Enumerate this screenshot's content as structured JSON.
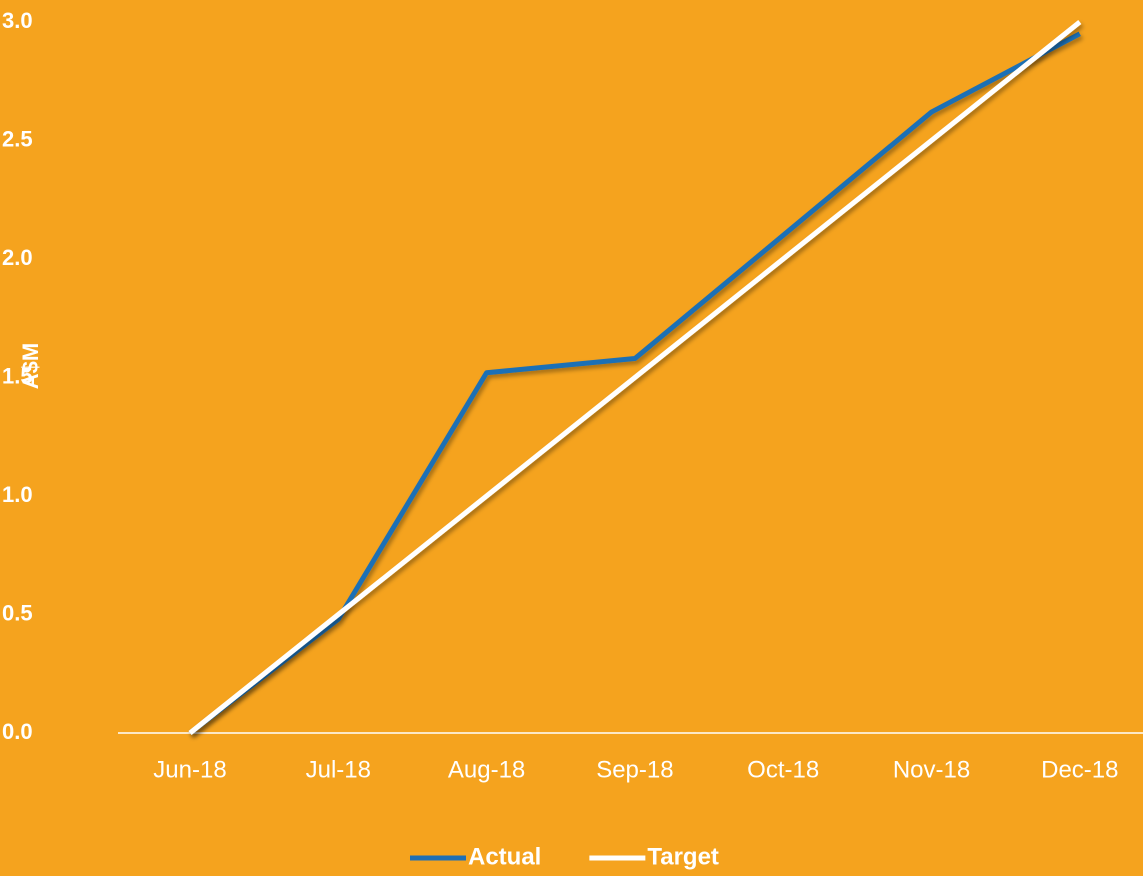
{
  "chart_data": {
    "type": "line",
    "y_axis_label": "A$M",
    "categories": [
      "Jun-18",
      "Jul-18",
      "Aug-18",
      "Sep-18",
      "Oct-18",
      "Nov-18",
      "Dec-18"
    ],
    "series": [
      {
        "name": "Actual",
        "color": "#1f6fb5",
        "values": [
          0,
          0.48,
          1.52,
          1.58,
          2.1,
          2.62,
          2.95
        ]
      },
      {
        "name": "Target",
        "color": "#ffffff",
        "values": [
          0,
          0.5,
          1.0,
          1.5,
          2.0,
          2.5,
          3.0
        ]
      }
    ],
    "ylim": [
      0,
      3.0
    ],
    "yticks": [
      {
        "value": 0,
        "label": "0.0"
      },
      {
        "value": 0.5,
        "label": "0.5"
      },
      {
        "value": 1.0,
        "label": "1.0"
      },
      {
        "value": 1.5,
        "label": "1.5"
      },
      {
        "value": 2.0,
        "label": "2.0"
      },
      {
        "value": 2.5,
        "label": "2.5"
      },
      {
        "value": 3.0,
        "label": "3.0"
      }
    ],
    "grid": false,
    "legend": "bottom"
  }
}
